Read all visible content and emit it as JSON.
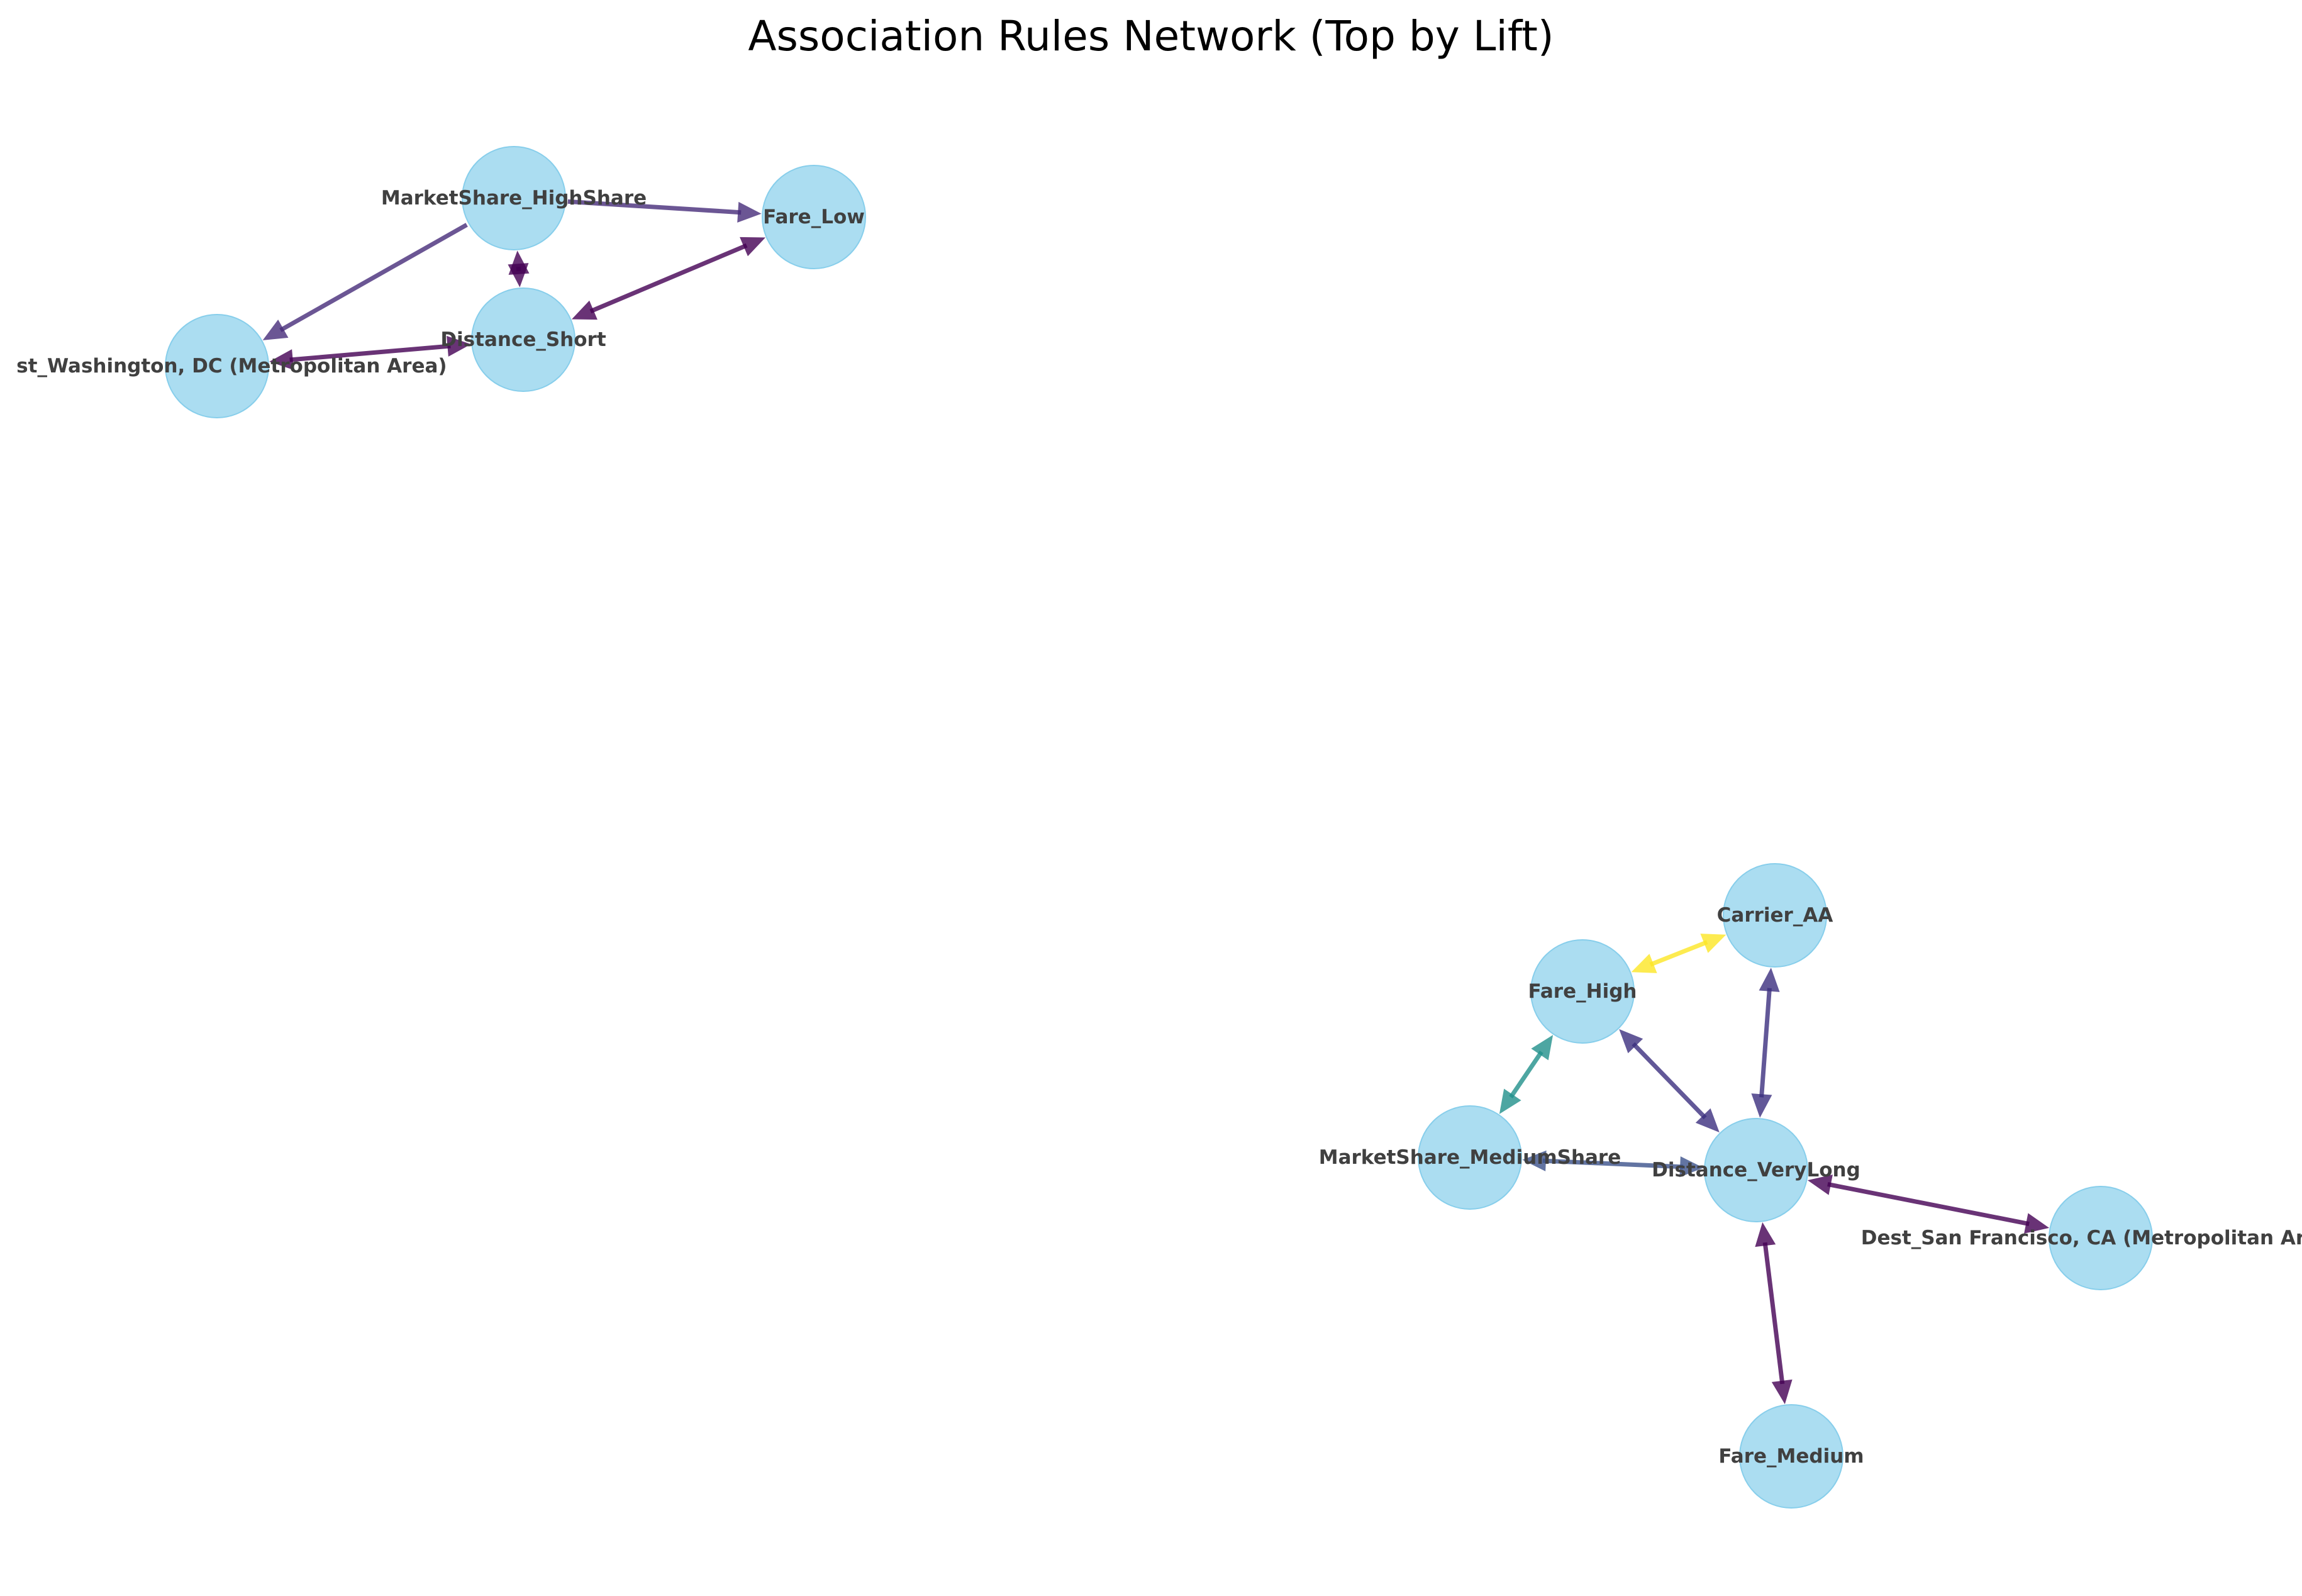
{
  "title": "Association Rules Network (Top by Lift)",
  "colors": {
    "node_fill": "#87ceeb",
    "label": "#404040",
    "lift_colormap": "viridis"
  },
  "nodes": [
    {
      "id": "MarketShare_HighShare",
      "label": "MarketShare_HighShare"
    },
    {
      "id": "Fare_Low",
      "label": "Fare_Low"
    },
    {
      "id": "Distance_Short",
      "label": "Distance_Short"
    },
    {
      "id": "Dest_Washington",
      "label": "Dest_Washington, DC (Metropolitan Area)"
    },
    {
      "id": "Carrier_AA",
      "label": "Carrier_AA"
    },
    {
      "id": "Fare_High",
      "label": "Fare_High"
    },
    {
      "id": "MarketShare_MediumShare",
      "label": "MarketShare_MediumShare"
    },
    {
      "id": "Distance_VeryLong",
      "label": "Distance_VeryLong"
    },
    {
      "id": "Dest_SanFrancisco",
      "label": "Dest_San Francisco, CA (Metropolitan Area)"
    },
    {
      "id": "Fare_Medium",
      "label": "Fare_Medium"
    }
  ],
  "edges": [
    {
      "source": "MarketShare_HighShare",
      "target": "Fare_Low",
      "bidirectional": false,
      "color": "#472c7a"
    },
    {
      "source": "MarketShare_HighShare",
      "target": "Dest_Washington",
      "bidirectional": false,
      "color": "#472c7a"
    },
    {
      "source": "MarketShare_HighShare",
      "target": "Distance_Short",
      "bidirectional": true,
      "color": "#440154"
    },
    {
      "source": "Distance_Short",
      "target": "Fare_Low",
      "bidirectional": true,
      "color": "#440154"
    },
    {
      "source": "Distance_Short",
      "target": "Dest_Washington",
      "bidirectional": true,
      "color": "#440154"
    },
    {
      "source": "Fare_High",
      "target": "Carrier_AA",
      "bidirectional": true,
      "color": "#fde725"
    },
    {
      "source": "Fare_High",
      "target": "MarketShare_MediumShare",
      "bidirectional": true,
      "color": "#21918c"
    },
    {
      "source": "Fare_High",
      "target": "Distance_VeryLong",
      "bidirectional": true,
      "color": "#3b2f7f"
    },
    {
      "source": "Carrier_AA",
      "target": "Distance_VeryLong",
      "bidirectional": true,
      "color": "#3b2f7f"
    },
    {
      "source": "MarketShare_MediumShare",
      "target": "Distance_VeryLong",
      "bidirectional": true,
      "color": "#3b528b"
    },
    {
      "source": "Distance_VeryLong",
      "target": "Dest_SanFrancisco",
      "bidirectional": true,
      "color": "#440154"
    },
    {
      "source": "Distance_VeryLong",
      "target": "Fare_Medium",
      "bidirectional": true,
      "color": "#440154"
    }
  ]
}
